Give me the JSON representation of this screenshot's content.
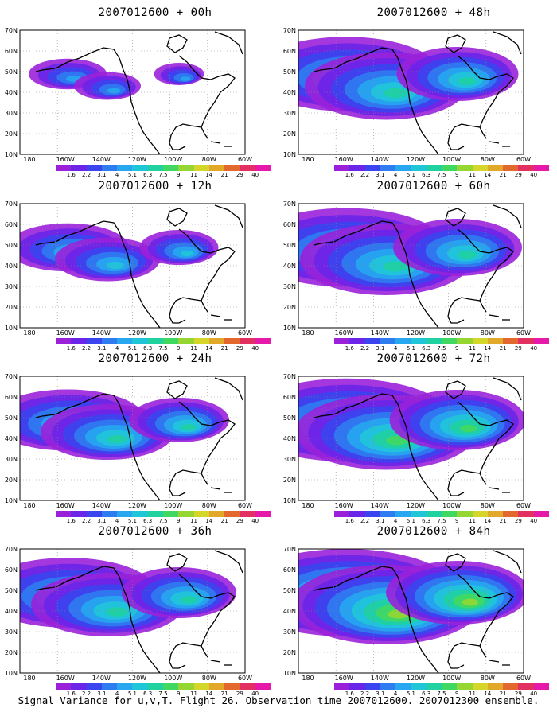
{
  "panels": [
    {
      "title": "2007012600 + 00h",
      "intensity": 0.25,
      "extent": 0.35
    },
    {
      "title": "2007012600 + 48h",
      "intensity": 0.45,
      "extent": 0.85
    },
    {
      "title": "2007012600 + 12h",
      "intensity": 0.35,
      "extent": 0.55
    },
    {
      "title": "2007012600 + 60h",
      "intensity": 0.55,
      "extent": 0.9
    },
    {
      "title": "2007012600 + 24h",
      "intensity": 0.45,
      "extent": 0.7
    },
    {
      "title": "2007012600 + 72h",
      "intensity": 0.6,
      "extent": 0.95
    },
    {
      "title": "2007012600 + 36h",
      "intensity": 0.5,
      "extent": 0.8
    },
    {
      "title": "2007012600 + 84h",
      "intensity": 0.75,
      "extent": 1.0
    }
  ],
  "axes": {
    "lat_labels": [
      "70N",
      "60N",
      "50N",
      "40N",
      "30N",
      "20N",
      "10N"
    ],
    "lon_labels": [
      "180",
      "160W",
      "140W",
      "120W",
      "100W",
      "80W",
      "60W"
    ]
  },
  "colorbar": {
    "labels": [
      "1.6",
      "2.2",
      "3.1",
      "4",
      "5.1",
      "6.3",
      "7.5",
      "9",
      "11",
      "14",
      "21",
      "29",
      "40"
    ],
    "colors": [
      "#9a21d9",
      "#6a25e8",
      "#3a45ef",
      "#2f7cf0",
      "#27a7f0",
      "#20c6d8",
      "#1fd2a0",
      "#40d860",
      "#96d632",
      "#d4d62a",
      "#e2a82a",
      "#e2682e",
      "#e23060",
      "#e619a8"
    ]
  },
  "footer": "Signal Variance for u,v,T. Flight 26. Observation time 2007012600. 2007012300 ensemble."
}
